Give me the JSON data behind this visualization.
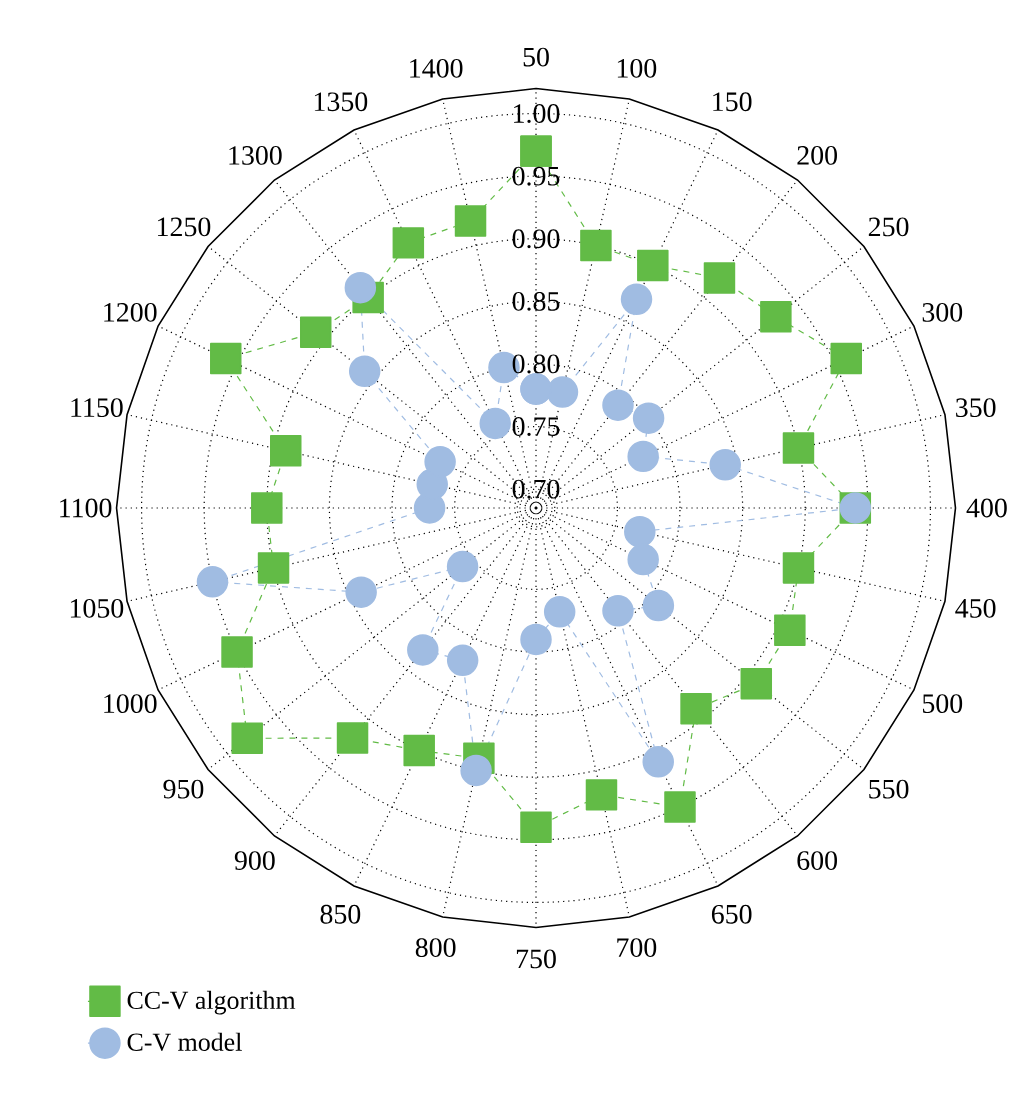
{
  "chart_data": {
    "type": "radar",
    "categories": [
      "50",
      "100",
      "150",
      "200",
      "250",
      "300",
      "350",
      "400",
      "450",
      "500",
      "550",
      "600",
      "650",
      "700",
      "750",
      "800",
      "850",
      "900",
      "950",
      "1000",
      "1050",
      "1100",
      "1150",
      "1200",
      "1250",
      "1300",
      "1350",
      "1400"
    ],
    "ylim": [
      0.685,
      1.02
    ],
    "yticks": [
      {
        "value": 0.7,
        "label": "0.70"
      },
      {
        "value": 0.75,
        "label": "0.75"
      },
      {
        "value": 0.8,
        "label": "0.80"
      },
      {
        "value": 0.85,
        "label": "0.85"
      },
      {
        "value": 0.9,
        "label": "0.90"
      },
      {
        "value": 0.95,
        "label": "0.95"
      },
      {
        "value": 1.0,
        "label": "1.00"
      }
    ],
    "grid": true,
    "legend": "bottom left",
    "line_style": "dashed",
    "series": [
      {
        "name": "CC-V algorithm",
        "color": "#62bb46",
        "marker": "square",
        "values": [
          0.97,
          0.9,
          0.9,
          0.92,
          0.93,
          0.96,
          0.9,
          0.94,
          0.9,
          0.91,
          0.91,
          0.89,
          0.95,
          0.92,
          0.94,
          0.89,
          0.9,
          0.92,
          0.98,
          0.95,
          0.9,
          0.9,
          0.89,
          0.96,
          0.91,
          0.9,
          0.92,
          0.92
        ]
      },
      {
        "name": "C-V model",
        "color": "#a0bce2",
        "marker": "circle",
        "values": [
          0.78,
          0.78,
          0.87,
          0.79,
          0.8,
          0.78,
          0.84,
          0.94,
          0.77,
          0.78,
          0.81,
          0.79,
          0.91,
          0.77,
          0.79,
          0.9,
          0.82,
          0.83,
          0.76,
          0.84,
          0.95,
          0.77,
          0.77,
          0.77,
          0.86,
          0.91,
          0.76,
          0.8
        ]
      }
    ]
  }
}
